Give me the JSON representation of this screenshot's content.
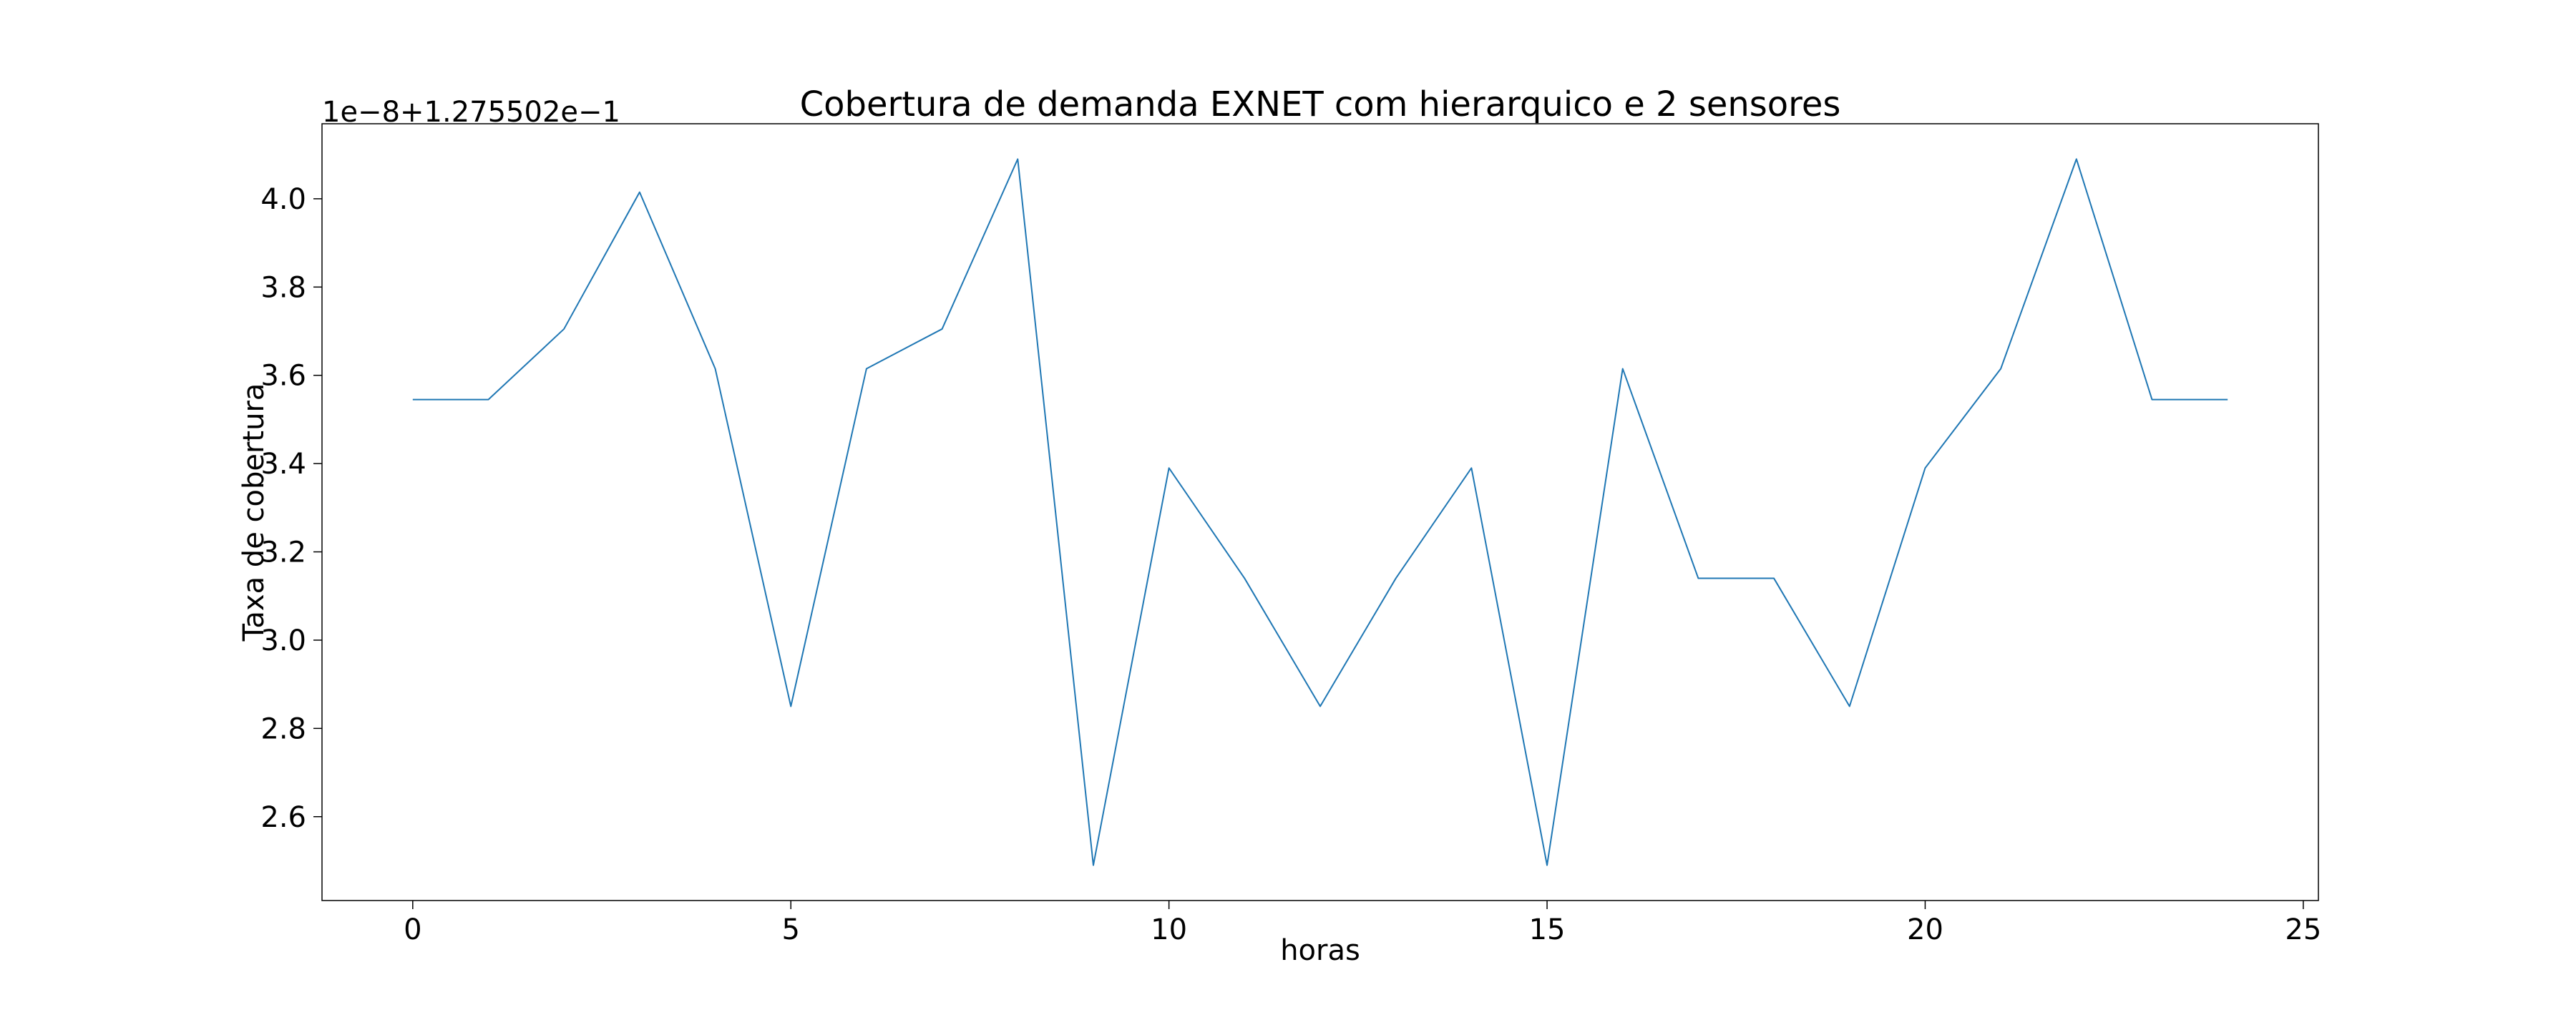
{
  "chart_data": {
    "type": "line",
    "title": "Cobertura de demanda EXNET com hierarquico e 2 sensores",
    "xlabel": "horas",
    "ylabel": "Taxa de cobertura",
    "offset_text": "1e−8+1.275502e−1",
    "xlim": [
      -1.2,
      25.2
    ],
    "ylim": [
      2.41,
      4.17
    ],
    "xticks": [
      0,
      5,
      10,
      15,
      20,
      25
    ],
    "yticks": [
      2.6,
      2.8,
      3.0,
      3.2,
      3.4,
      3.6,
      3.8,
      4.0
    ],
    "grid": false,
    "legend": "none",
    "series": [
      {
        "color": "#1f77b4",
        "x": [
          0,
          1,
          2,
          3,
          4,
          5,
          6,
          7,
          8,
          9,
          10,
          11,
          12,
          13,
          14,
          15,
          16,
          17,
          18,
          19,
          20,
          21,
          22,
          23,
          24
        ],
        "y": [
          3.545,
          3.545,
          3.705,
          4.015,
          3.615,
          2.85,
          3.615,
          3.705,
          4.09,
          2.49,
          3.39,
          3.14,
          2.85,
          3.14,
          3.39,
          2.49,
          3.615,
          3.14,
          3.14,
          2.85,
          3.39,
          3.615,
          4.09,
          3.545,
          3.545
        ]
      }
    ]
  }
}
